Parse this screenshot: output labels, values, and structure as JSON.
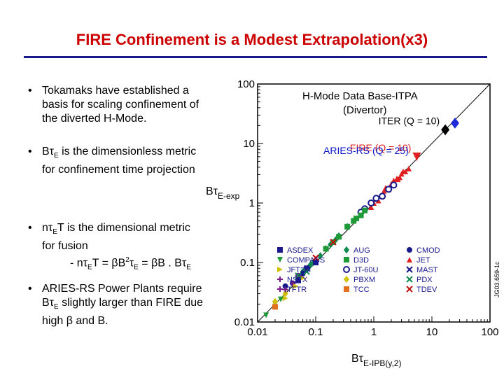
{
  "slide": {
    "title": "FIRE Confinement is a Modest Extrapolation(x3)",
    "bullets": [
      {
        "symbol": "•",
        "lines": [
          "Tokamaks have established a",
          "basis for scaling confinement of",
          "the diverted H-Mode."
        ]
      },
      {
        "symbol": "•",
        "lines": [
          "Bτ",
          "E",
          " is the dimensionless metric",
          "for confinement time projection"
        ]
      },
      {
        "symbol": "•",
        "lines": [
          "nτ",
          "E",
          "T is the dimensional metric",
          "for fusion",
          "- nτ",
          "E",
          "T = βB",
          "2",
          "τ",
          "E",
          " = βB . Bτ",
          "E"
        ]
      },
      {
        "symbol": "•",
        "lines": [
          "ARIES-RS Power Plants require",
          "Bτ",
          "E",
          " slightly larger than FIRE due",
          "high β and B."
        ]
      }
    ],
    "overlay_label": "ARIES-RS (Q = 25)"
  },
  "chart_data": {
    "type": "scatter",
    "title": "H-Mode Data Base-ITPA",
    "subtitle": "(Divertor)",
    "xlabel_main": "Bτ",
    "xlabel_sub": "E-IPB(y,2)",
    "ylabel_main": "Bτ",
    "ylabel_sub": "E-exp",
    "xscale": "log",
    "yscale": "log",
    "xlim": [
      0.01,
      100
    ],
    "ylim": [
      0.01,
      100
    ],
    "x_ticks": [
      "0.01",
      "0.1",
      "1",
      "10",
      "100"
    ],
    "y_ticks": [
      "0.01",
      "0.1",
      "1",
      "10",
      "100"
    ],
    "side_text": "JG03.659-1c",
    "reference_line": [
      [
        0.01,
        0.01
      ],
      [
        100,
        100
      ]
    ],
    "highlight_points": [
      {
        "label": "ITER (Q = 10)",
        "x": 17,
        "y": 17,
        "color": "#000000",
        "shape": "diamond"
      },
      {
        "label": "ARIES-RS (Q = 25)",
        "x": 25,
        "y": 22,
        "color": "#1f2bd6",
        "shape": "diamond"
      },
      {
        "label": "FIRE (Q = 10)",
        "x": 5.5,
        "y": 6.0,
        "color": "#e02020",
        "shape": "triangle-down"
      }
    ],
    "legend": [
      {
        "name": "ASDEX",
        "color": "#1a1a8c",
        "shape": "square"
      },
      {
        "name": "AUG",
        "color": "#108a50",
        "shape": "diamond"
      },
      {
        "name": "CMOD",
        "color": "#1a1a8c",
        "shape": "circle"
      },
      {
        "name": "COMPASS",
        "color": "#1e9a38",
        "shape": "triangle-down"
      },
      {
        "name": "D3D",
        "color": "#1e9a38",
        "shape": "square"
      },
      {
        "name": "JET",
        "color": "#e02020",
        "shape": "triangle-up"
      },
      {
        "name": "JFT2M",
        "color": "#d0c000",
        "shape": "triangle-right"
      },
      {
        "name": "JT-60U",
        "color": "#1a1a8c",
        "shape": "circle-dot"
      },
      {
        "name": "MAST",
        "color": "#1a1a8c",
        "shape": "x"
      },
      {
        "name": "NSTX",
        "color": "#7a1a8a",
        "shape": "plus"
      },
      {
        "name": "PBXM",
        "color": "#d0c000",
        "shape": "diamond"
      },
      {
        "name": "PDX",
        "color": "#108a50",
        "shape": "x"
      },
      {
        "name": "TFTR",
        "color": "#7a1a8a",
        "shape": "plus"
      },
      {
        "name": "TCC",
        "color": "#e07020",
        "shape": "square"
      },
      {
        "name": "TDEV",
        "color": "#c01010",
        "shape": "x"
      }
    ],
    "series": [
      {
        "name": "JET",
        "color": "#e02020",
        "shape": "triangle-up",
        "x": [
          1.5,
          2.0,
          2.5,
          3.0,
          3.5,
          1.8,
          2.2,
          2.8,
          1.2,
          1.0,
          4.0,
          2.6,
          3.2,
          1.6,
          0.9
        ],
        "y": [
          1.6,
          2.1,
          2.6,
          3.1,
          3.4,
          1.7,
          2.4,
          2.7,
          1.1,
          1.0,
          3.8,
          2.5,
          3.4,
          1.8,
          0.85
        ]
      },
      {
        "name": "JT-60U",
        "color": "#1a1a8c",
        "shape": "circle-dot",
        "x": [
          0.9,
          1.4,
          2.2,
          0.7,
          1.1,
          1.8,
          0.6
        ],
        "y": [
          1.0,
          1.3,
          2.0,
          0.8,
          1.2,
          1.7,
          0.7
        ]
      },
      {
        "name": "AUG",
        "color": "#108a50",
        "shape": "diamond",
        "x": [
          0.06,
          0.09,
          0.12,
          0.18,
          0.25,
          0.35,
          0.08,
          0.15,
          0.22
        ],
        "y": [
          0.07,
          0.1,
          0.13,
          0.2,
          0.28,
          0.4,
          0.09,
          0.17,
          0.24
        ]
      },
      {
        "name": "D3D",
        "color": "#1e9a38",
        "shape": "square",
        "x": [
          0.15,
          0.25,
          0.35,
          0.5,
          0.7,
          0.2,
          0.45,
          0.6
        ],
        "y": [
          0.17,
          0.27,
          0.4,
          0.55,
          0.75,
          0.22,
          0.5,
          0.62
        ]
      },
      {
        "name": "CMOD",
        "color": "#1a1a8c",
        "shape": "circle",
        "x": [
          0.03,
          0.04,
          0.05,
          0.06
        ],
        "y": [
          0.04,
          0.045,
          0.06,
          0.065
        ]
      },
      {
        "name": "JFT2M",
        "color": "#d0c000",
        "shape": "triangle-right",
        "x": [
          0.03,
          0.045,
          0.06
        ],
        "y": [
          0.025,
          0.04,
          0.055
        ]
      },
      {
        "name": "COMPASS",
        "color": "#1e9a38",
        "shape": "triangle-down",
        "x": [
          0.014,
          0.02,
          0.025
        ],
        "y": [
          0.013,
          0.02,
          0.024
        ]
      },
      {
        "name": "PBXM",
        "color": "#d0c000",
        "shape": "diamond",
        "x": [
          0.02,
          0.03
        ],
        "y": [
          0.022,
          0.03
        ]
      },
      {
        "name": "NSTX",
        "color": "#7a1a8a",
        "shape": "plus",
        "x": [
          0.03,
          0.05,
          0.04
        ],
        "y": [
          0.035,
          0.06,
          0.045
        ]
      },
      {
        "name": "ASDEX",
        "color": "#1a1a8c",
        "shape": "square",
        "x": [
          0.05,
          0.07,
          0.1
        ],
        "y": [
          0.05,
          0.08,
          0.1
        ]
      },
      {
        "name": "TCC",
        "color": "#e07020",
        "shape": "square",
        "x": [
          0.02
        ],
        "y": [
          0.018
        ]
      },
      {
        "name": "PDX",
        "color": "#108a50",
        "shape": "x",
        "x": [
          0.05,
          0.07
        ],
        "y": [
          0.06,
          0.07
        ]
      },
      {
        "name": "TDEV",
        "color": "#c01010",
        "shape": "x",
        "x": [
          0.1,
          0.2
        ],
        "y": [
          0.12,
          0.22
        ]
      }
    ]
  }
}
